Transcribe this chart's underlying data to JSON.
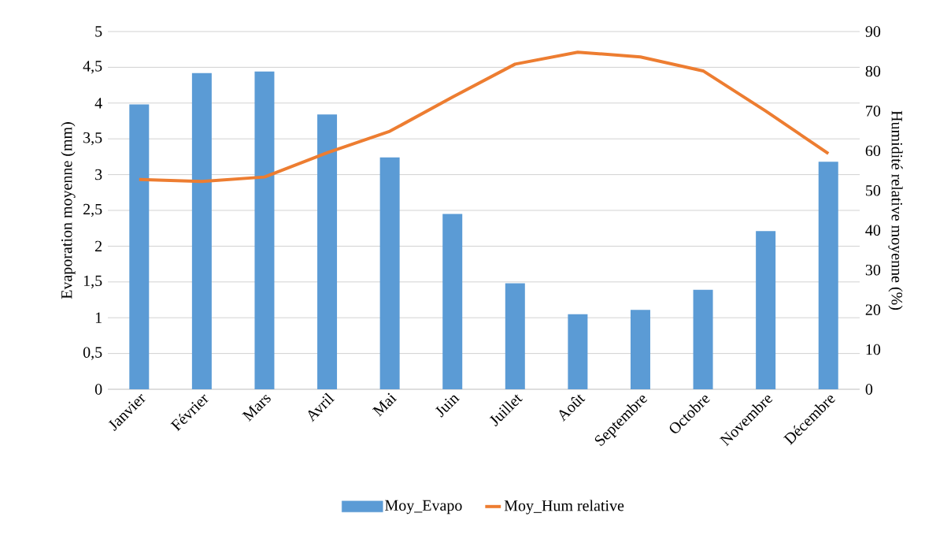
{
  "chart_data": {
    "type": "bar",
    "xlabel": null,
    "ylabel": "Evaporation moyenne (mm)",
    "y2label": "Humidité relative moyenne (%)",
    "categories": [
      "Janvier",
      "Février",
      "Mars",
      "Avril",
      "Mai",
      "Juin",
      "Juillet",
      "Août",
      "Septembre",
      "Octobre",
      "Novembre",
      "Décembre"
    ],
    "series": [
      {
        "name": "Moy_Evapo",
        "color": "#5b9bd5",
        "values": [
          3.98,
          4.42,
          4.44,
          3.84,
          3.24,
          2.45,
          1.48,
          1.05,
          1.11,
          1.39,
          2.21,
          3.18
        ]
      },
      {
        "name": "Moy_Hum relative",
        "type": "line",
        "axis": "y2",
        "color": "#ed7d31",
        "values": [
          52.8,
          52.3,
          53.4,
          59.5,
          64.9,
          73.5,
          81.8,
          84.8,
          83.6,
          80.1,
          70.0,
          59.3
        ]
      }
    ],
    "ylim": [
      0,
      5
    ],
    "yticks": [
      {
        "value": 0,
        "label": "0"
      },
      {
        "value": 0.5,
        "label": "0,5"
      },
      {
        "value": 1,
        "label": "1"
      },
      {
        "value": 1.5,
        "label": "1,5"
      },
      {
        "value": 2,
        "label": "2"
      },
      {
        "value": 2.5,
        "label": "2,5"
      },
      {
        "value": 3,
        "label": "3"
      },
      {
        "value": 3.5,
        "label": "3,5"
      },
      {
        "value": 4,
        "label": "4"
      },
      {
        "value": 4.5,
        "label": "4,5"
      },
      {
        "value": 5,
        "label": "5"
      }
    ],
    "y2lim": [
      0,
      90
    ],
    "y2ticks": [
      0,
      10,
      20,
      30,
      40,
      50,
      60,
      70,
      80,
      90
    ],
    "grid": "y",
    "legend": "bottom",
    "marker": "none"
  }
}
